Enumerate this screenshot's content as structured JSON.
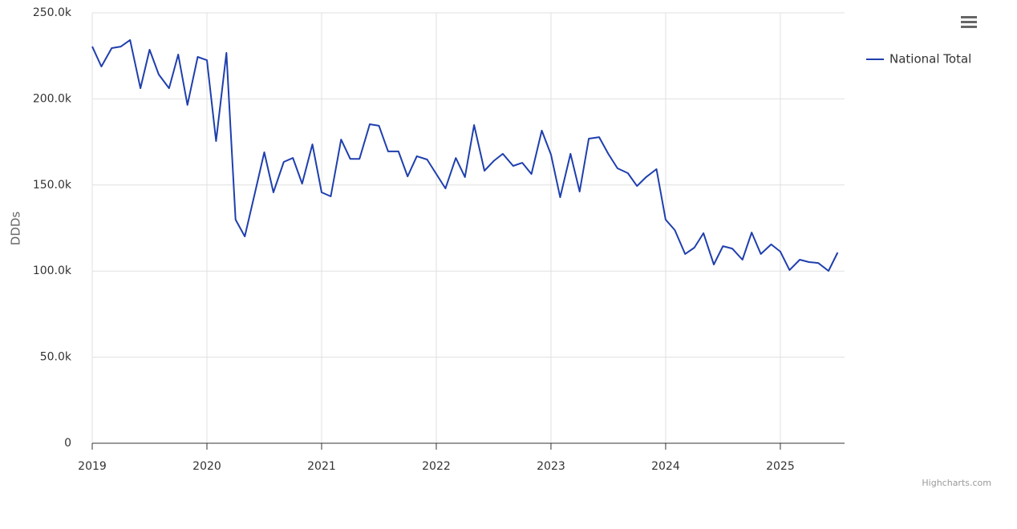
{
  "chart_data": {
    "type": "line",
    "y_axis_label": "DDDs",
    "credits": "Highcharts.com",
    "x": [
      2019.0,
      2019.08,
      2019.17,
      2019.25,
      2019.33,
      2019.42,
      2019.5,
      2019.58,
      2019.67,
      2019.75,
      2019.83,
      2019.92,
      2020.0,
      2020.08,
      2020.17,
      2020.25,
      2020.33,
      2020.42,
      2020.5,
      2020.58,
      2020.67,
      2020.75,
      2020.83,
      2020.92,
      2021.0,
      2021.08,
      2021.17,
      2021.25,
      2021.33,
      2021.42,
      2021.5,
      2021.58,
      2021.67,
      2021.75,
      2021.83,
      2021.92,
      2022.0,
      2022.08,
      2022.17,
      2022.25,
      2022.33,
      2022.42,
      2022.5,
      2022.58,
      2022.67,
      2022.75,
      2022.83,
      2022.92,
      2023.0,
      2023.08,
      2023.17,
      2023.25,
      2023.33,
      2023.42,
      2023.5,
      2023.58,
      2023.67,
      2023.75,
      2023.83,
      2023.92,
      2024.0,
      2024.08,
      2024.17,
      2024.25,
      2024.33,
      2024.42,
      2024.5,
      2024.58,
      2024.67,
      2024.75,
      2024.83,
      2024.92,
      2025.0,
      2025.08,
      2025.17,
      2025.25,
      2025.33,
      2025.42,
      2025.5
    ],
    "series": [
      {
        "name": "National Total",
        "color": "#1f3fad",
        "values": [
          230400,
          218800,
          229500,
          230400,
          234200,
          206200,
          228600,
          214200,
          206200,
          225800,
          196500,
          224400,
          222500,
          175500,
          226700,
          129900,
          120100,
          145700,
          169000,
          145700,
          163400,
          165700,
          150800,
          173600,
          145700,
          143400,
          176400,
          165200,
          165200,
          185300,
          184400,
          169500,
          169500,
          155000,
          166700,
          164800,
          156400,
          148000,
          165700,
          154600,
          184800,
          158300,
          163900,
          168100,
          161100,
          162900,
          156400,
          181600,
          167600,
          142900,
          168100,
          146200,
          176900,
          177800,
          168100,
          159700,
          156900,
          149400,
          154600,
          159200,
          129900,
          123800,
          109900,
          113600,
          122000,
          103800,
          114500,
          113100,
          106600,
          122400,
          109900,
          115500,
          111300,
          100600,
          106600,
          105200,
          104700,
          100100,
          110800
        ]
      }
    ],
    "xlim": [
      2019,
      2025.56
    ],
    "xticks": [
      2019,
      2020,
      2021,
      2022,
      2023,
      2024,
      2025
    ],
    "ylim": [
      0,
      250000
    ],
    "yticks": [
      0,
      {
        "value": 50000,
        "label": "50.0k"
      },
      {
        "value": 100000,
        "label": "100.0k"
      },
      {
        "value": 150000,
        "label": "150.0k"
      },
      {
        "value": 200000,
        "label": "200.0k"
      },
      {
        "value": 250000,
        "label": "250.0k"
      }
    ],
    "grid": true,
    "legend": "top-right"
  }
}
